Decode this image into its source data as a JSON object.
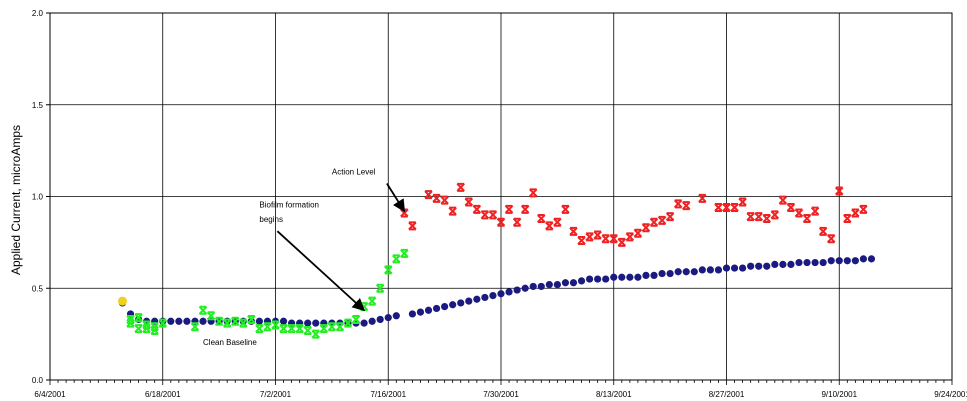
{
  "chart_data": {
    "type": "scatter",
    "title": "",
    "xlabel": "",
    "ylabel": "Applied Current, microAmps",
    "xlim": [
      "2001-06-04",
      "2001-09-24"
    ],
    "ylim": [
      0,
      2.0
    ],
    "x_ticks": [
      "6/4/2001",
      "6/18/2001",
      "7/2/2001",
      "7/16/2001",
      "7/30/2001",
      "8/13/2001",
      "8/27/2001",
      "9/10/2001",
      "9/24/2001"
    ],
    "y_ticks": [
      "0.0",
      "0.5",
      "1.0",
      "1.5",
      "2.0"
    ],
    "grid": true,
    "legend": "none",
    "annotations": [
      {
        "text": "Action Level",
        "x": "2001-07-09",
        "y": 1.12,
        "arrow_to": {
          "x": "2001-07-18",
          "y": 0.92
        }
      },
      {
        "text": "Biofilm formation",
        "x": "2001-06-30",
        "y": 0.94
      },
      {
        "text": "begins",
        "x": "2001-06-30",
        "y": 0.86,
        "arrow_to": {
          "x": "2001-07-13",
          "y": 0.38
        }
      },
      {
        "text": "Clean Baseline",
        "x": "2001-06-23",
        "y": 0.19
      }
    ],
    "series": [
      {
        "color": "#1a1a80",
        "marker": "circle",
        "points": [
          [
            "2001-06-13",
            0.42
          ],
          [
            "2001-06-14",
            0.36
          ],
          [
            "2001-06-15",
            0.33
          ],
          [
            "2001-06-16",
            0.32
          ],
          [
            "2001-06-17",
            0.32
          ],
          [
            "2001-06-18",
            0.32
          ],
          [
            "2001-06-19",
            0.32
          ],
          [
            "2001-06-20",
            0.32
          ],
          [
            "2001-06-21",
            0.32
          ],
          [
            "2001-06-22",
            0.32
          ],
          [
            "2001-06-23",
            0.32
          ],
          [
            "2001-06-24",
            0.32
          ],
          [
            "2001-06-25",
            0.32
          ],
          [
            "2001-06-26",
            0.32
          ],
          [
            "2001-06-27",
            0.32
          ],
          [
            "2001-06-28",
            0.32
          ],
          [
            "2001-06-29",
            0.32
          ],
          [
            "2001-06-30",
            0.32
          ],
          [
            "2001-07-01",
            0.32
          ],
          [
            "2001-07-02",
            0.32
          ],
          [
            "2001-07-03",
            0.32
          ],
          [
            "2001-07-04",
            0.31
          ],
          [
            "2001-07-05",
            0.31
          ],
          [
            "2001-07-06",
            0.31
          ],
          [
            "2001-07-07",
            0.31
          ],
          [
            "2001-07-08",
            0.31
          ],
          [
            "2001-07-09",
            0.31
          ],
          [
            "2001-07-10",
            0.31
          ],
          [
            "2001-07-11",
            0.31
          ],
          [
            "2001-07-12",
            0.31
          ],
          [
            "2001-07-13",
            0.31
          ],
          [
            "2001-07-14",
            0.32
          ],
          [
            "2001-07-15",
            0.33
          ],
          [
            "2001-07-16",
            0.34
          ],
          [
            "2001-07-17",
            0.35
          ],
          [
            "2001-07-19",
            0.36
          ],
          [
            "2001-07-20",
            0.37
          ],
          [
            "2001-07-21",
            0.38
          ],
          [
            "2001-07-22",
            0.39
          ],
          [
            "2001-07-23",
            0.4
          ],
          [
            "2001-07-24",
            0.41
          ],
          [
            "2001-07-25",
            0.42
          ],
          [
            "2001-07-26",
            0.43
          ],
          [
            "2001-07-27",
            0.44
          ],
          [
            "2001-07-28",
            0.45
          ],
          [
            "2001-07-29",
            0.46
          ],
          [
            "2001-07-30",
            0.47
          ],
          [
            "2001-07-31",
            0.48
          ],
          [
            "2001-08-01",
            0.49
          ],
          [
            "2001-08-02",
            0.5
          ],
          [
            "2001-08-03",
            0.51
          ],
          [
            "2001-08-04",
            0.51
          ],
          [
            "2001-08-05",
            0.52
          ],
          [
            "2001-08-06",
            0.52
          ],
          [
            "2001-08-07",
            0.53
          ],
          [
            "2001-08-08",
            0.53
          ],
          [
            "2001-08-09",
            0.54
          ],
          [
            "2001-08-10",
            0.55
          ],
          [
            "2001-08-11",
            0.55
          ],
          [
            "2001-08-12",
            0.55
          ],
          [
            "2001-08-13",
            0.56
          ],
          [
            "2001-08-14",
            0.56
          ],
          [
            "2001-08-15",
            0.56
          ],
          [
            "2001-08-16",
            0.56
          ],
          [
            "2001-08-17",
            0.57
          ],
          [
            "2001-08-18",
            0.57
          ],
          [
            "2001-08-19",
            0.58
          ],
          [
            "2001-08-20",
            0.58
          ],
          [
            "2001-08-21",
            0.59
          ],
          [
            "2001-08-22",
            0.59
          ],
          [
            "2001-08-23",
            0.59
          ],
          [
            "2001-08-24",
            0.6
          ],
          [
            "2001-08-25",
            0.6
          ],
          [
            "2001-08-26",
            0.6
          ],
          [
            "2001-08-27",
            0.61
          ],
          [
            "2001-08-28",
            0.61
          ],
          [
            "2001-08-29",
            0.61
          ],
          [
            "2001-08-30",
            0.62
          ],
          [
            "2001-08-31",
            0.62
          ],
          [
            "2001-09-01",
            0.62
          ],
          [
            "2001-09-02",
            0.63
          ],
          [
            "2001-09-03",
            0.63
          ],
          [
            "2001-09-04",
            0.63
          ],
          [
            "2001-09-05",
            0.64
          ],
          [
            "2001-09-06",
            0.64
          ],
          [
            "2001-09-07",
            0.64
          ],
          [
            "2001-09-08",
            0.64
          ],
          [
            "2001-09-09",
            0.65
          ],
          [
            "2001-09-10",
            0.65
          ],
          [
            "2001-09-11",
            0.65
          ],
          [
            "2001-09-12",
            0.65
          ],
          [
            "2001-09-13",
            0.66
          ],
          [
            "2001-09-14",
            0.66
          ]
        ]
      },
      {
        "color": "#22ee22",
        "marker": "x",
        "points": [
          [
            "2001-06-14",
            0.31
          ],
          [
            "2001-06-14",
            0.33
          ],
          [
            "2001-06-15",
            0.28
          ],
          [
            "2001-06-15",
            0.34
          ],
          [
            "2001-06-16",
            0.3
          ],
          [
            "2001-06-16",
            0.28
          ],
          [
            "2001-06-17",
            0.29
          ],
          [
            "2001-06-17",
            0.27
          ],
          [
            "2001-06-18",
            0.31
          ],
          [
            "2001-06-22",
            0.29
          ],
          [
            "2001-06-23",
            0.38
          ],
          [
            "2001-06-24",
            0.35
          ],
          [
            "2001-06-25",
            0.32
          ],
          [
            "2001-06-26",
            0.31
          ],
          [
            "2001-06-27",
            0.32
          ],
          [
            "2001-06-28",
            0.31
          ],
          [
            "2001-06-29",
            0.33
          ],
          [
            "2001-06-30",
            0.28
          ],
          [
            "2001-07-01",
            0.29
          ],
          [
            "2001-07-02",
            0.3
          ],
          [
            "2001-07-03",
            0.28
          ],
          [
            "2001-07-04",
            0.28
          ],
          [
            "2001-07-05",
            0.28
          ],
          [
            "2001-07-06",
            0.27
          ],
          [
            "2001-07-07",
            0.25
          ],
          [
            "2001-07-08",
            0.28
          ],
          [
            "2001-07-09",
            0.29
          ],
          [
            "2001-07-10",
            0.29
          ],
          [
            "2001-07-11",
            0.31
          ],
          [
            "2001-07-12",
            0.33
          ],
          [
            "2001-07-13",
            0.4
          ],
          [
            "2001-07-14",
            0.43
          ],
          [
            "2001-07-15",
            0.5
          ],
          [
            "2001-07-16",
            0.6
          ],
          [
            "2001-07-17",
            0.66
          ],
          [
            "2001-07-18",
            0.69
          ]
        ]
      },
      {
        "color": "#ee2222",
        "marker": "x",
        "points": [
          [
            "2001-07-18",
            0.91
          ],
          [
            "2001-07-19",
            0.84
          ],
          [
            "2001-07-21",
            1.01
          ],
          [
            "2001-07-22",
            0.99
          ],
          [
            "2001-07-23",
            0.98
          ],
          [
            "2001-07-24",
            0.92
          ],
          [
            "2001-07-25",
            1.05
          ],
          [
            "2001-07-26",
            0.97
          ],
          [
            "2001-07-27",
            0.93
          ],
          [
            "2001-07-28",
            0.9
          ],
          [
            "2001-07-29",
            0.9
          ],
          [
            "2001-07-30",
            0.86
          ],
          [
            "2001-07-31",
            0.93
          ],
          [
            "2001-08-01",
            0.86
          ],
          [
            "2001-08-02",
            0.93
          ],
          [
            "2001-08-03",
            1.02
          ],
          [
            "2001-08-04",
            0.88
          ],
          [
            "2001-08-05",
            0.84
          ],
          [
            "2001-08-06",
            0.86
          ],
          [
            "2001-08-07",
            0.93
          ],
          [
            "2001-08-08",
            0.81
          ],
          [
            "2001-08-09",
            0.76
          ],
          [
            "2001-08-10",
            0.78
          ],
          [
            "2001-08-11",
            0.79
          ],
          [
            "2001-08-12",
            0.77
          ],
          [
            "2001-08-13",
            0.77
          ],
          [
            "2001-08-14",
            0.75
          ],
          [
            "2001-08-15",
            0.78
          ],
          [
            "2001-08-16",
            0.8
          ],
          [
            "2001-08-17",
            0.83
          ],
          [
            "2001-08-18",
            0.86
          ],
          [
            "2001-08-19",
            0.87
          ],
          [
            "2001-08-20",
            0.89
          ],
          [
            "2001-08-21",
            0.96
          ],
          [
            "2001-08-22",
            0.95
          ],
          [
            "2001-08-24",
            0.99
          ],
          [
            "2001-08-26",
            0.94
          ],
          [
            "2001-08-27",
            0.94
          ],
          [
            "2001-08-28",
            0.94
          ],
          [
            "2001-08-29",
            0.97
          ],
          [
            "2001-08-30",
            0.89
          ],
          [
            "2001-08-31",
            0.89
          ],
          [
            "2001-09-01",
            0.88
          ],
          [
            "2001-09-02",
            0.9
          ],
          [
            "2001-09-03",
            0.98
          ],
          [
            "2001-09-04",
            0.94
          ],
          [
            "2001-09-05",
            0.91
          ],
          [
            "2001-09-06",
            0.88
          ],
          [
            "2001-09-07",
            0.92
          ],
          [
            "2001-09-08",
            0.81
          ],
          [
            "2001-09-09",
            0.77
          ],
          [
            "2001-09-10",
            1.03
          ],
          [
            "2001-09-11",
            0.88
          ],
          [
            "2001-09-12",
            0.91
          ],
          [
            "2001-09-13",
            0.93
          ]
        ]
      },
      {
        "color": "#f0d020",
        "marker": "circle",
        "points": [
          [
            "2001-06-13",
            0.43
          ]
        ]
      }
    ]
  }
}
